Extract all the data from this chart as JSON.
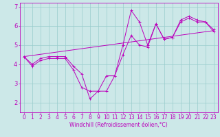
{
  "title": "",
  "xlabel": "Windchill (Refroidissement éolien,°C)",
  "ylabel": "",
  "background_color": "#cce8e8",
  "line_color": "#bb00bb",
  "grid_color": "#99cccc",
  "xlim": [
    -0.5,
    23.5
  ],
  "ylim": [
    1.5,
    7.2
  ],
  "xticks": [
    0,
    1,
    2,
    3,
    4,
    5,
    6,
    7,
    8,
    9,
    10,
    11,
    12,
    13,
    14,
    15,
    16,
    17,
    18,
    19,
    20,
    21,
    22,
    23
  ],
  "yticks": [
    2,
    3,
    4,
    5,
    6,
    7
  ],
  "series1_x": [
    0,
    1,
    2,
    3,
    4,
    5,
    6,
    7,
    8,
    9,
    10,
    11,
    12,
    13,
    14,
    15,
    16,
    17,
    18,
    19,
    20,
    21,
    22,
    23
  ],
  "series1_y": [
    4.4,
    3.9,
    4.2,
    4.3,
    4.3,
    4.3,
    3.7,
    2.8,
    2.6,
    2.6,
    3.4,
    3.4,
    5.0,
    6.8,
    6.2,
    5.0,
    6.1,
    5.3,
    5.4,
    6.3,
    6.5,
    6.3,
    6.2,
    5.8
  ],
  "series2_x": [
    0,
    1,
    2,
    3,
    4,
    5,
    6,
    7,
    8,
    9,
    10,
    11,
    12,
    13,
    14,
    15,
    16,
    17,
    18,
    19,
    20,
    21,
    22,
    23
  ],
  "series2_y": [
    4.4,
    4.0,
    4.3,
    4.4,
    4.4,
    4.4,
    3.9,
    3.5,
    2.2,
    2.6,
    2.6,
    3.4,
    4.5,
    5.5,
    5.0,
    4.9,
    6.1,
    5.3,
    5.4,
    6.2,
    6.4,
    6.2,
    6.2,
    5.7
  ],
  "series3_x": [
    0,
    23
  ],
  "series3_y": [
    4.4,
    5.75
  ],
  "tick_fontsize": 5.5,
  "xlabel_fontsize": 5.5,
  "lw": 0.7,
  "marker_size": 2.5
}
